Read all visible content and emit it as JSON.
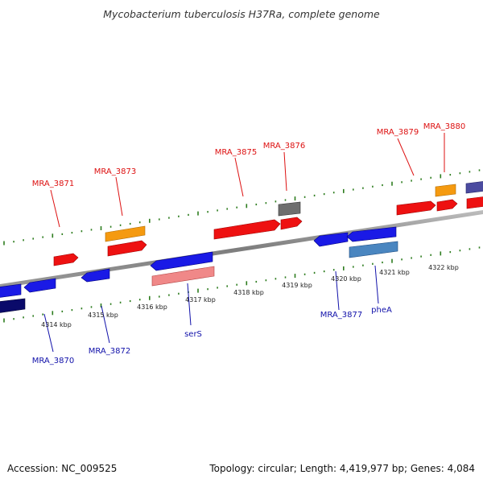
{
  "title": "Mycobacterium tuberculosis H37Ra, complete genome",
  "footer": {
    "accession": "Accession: NC_009525",
    "summary": "Topology: circular; Length: 4,419,977 bp; Genes: 4,084"
  },
  "colors": {
    "backbone": "#8a8a8a",
    "tick": "#2e7d1f",
    "forward_label": "#dd1111",
    "reverse_label": "#1111aa",
    "red": "#ee1111",
    "orange": "#f59a10",
    "gray": "#6e6e6e",
    "purple": "#4b4ba0",
    "blue": "#1a1ae6",
    "navy": "#0a0a6a",
    "salmon": "#f08888",
    "steel": "#4a86c0"
  },
  "kbp_labels": [
    "4314 kbp",
    "4315 kbp",
    "4316 kbp",
    "4317 kbp",
    "4318 kbp",
    "4319 kbp",
    "4320 kbp",
    "4321 kbp",
    "4322 kbp"
  ],
  "forward_labels": [
    "MRA_3871",
    "MRA_3873",
    "MRA_3875",
    "MRA_3876",
    "MRA_3879",
    "MRA_3880"
  ],
  "reverse_labels": [
    "MRA_3870",
    "MRA_3872",
    "serS",
    "MRA_3877",
    "pheA"
  ]
}
